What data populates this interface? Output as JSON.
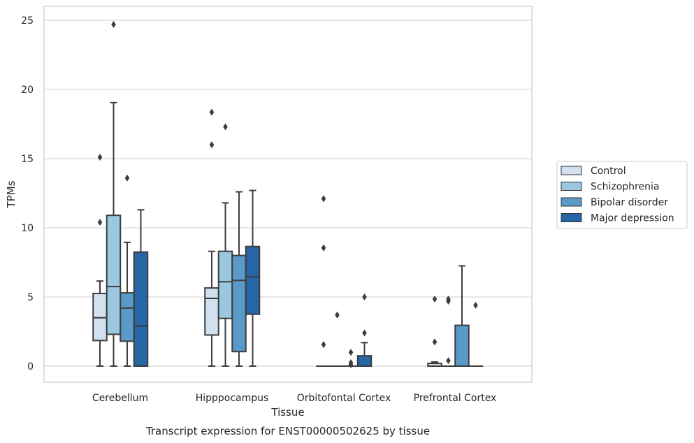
{
  "chart_data": {
    "type": "box",
    "caption": "Transcript expression for ENST00000502625 by tissue",
    "xlabel": "Tissue",
    "ylabel": "TPMs",
    "ylim": [
      -1.2,
      26
    ],
    "yticks": [
      0,
      5,
      10,
      15,
      20,
      25
    ],
    "grid": true,
    "legend_position": "right",
    "categories": [
      "Cerebellum",
      "Hipppocampus",
      "Orbitofontal Cortex",
      "Prefrontal Cortex"
    ],
    "series": [
      {
        "name": "Control",
        "color": "#d1e1f0",
        "boxes": [
          {
            "whislo": 0,
            "q1": 1.85,
            "med": 3.5,
            "q3": 5.25,
            "whishi": 6.15,
            "fliers": [
              10.4,
              15.1
            ]
          },
          {
            "whislo": 0,
            "q1": 2.25,
            "med": 4.9,
            "q3": 5.65,
            "whishi": 8.3,
            "fliers": [
              16.0,
              18.35
            ]
          },
          {
            "whislo": 0,
            "q1": 0,
            "med": 0,
            "q3": 0,
            "whishi": 0,
            "fliers": [
              1.55,
              8.55,
              12.1
            ]
          },
          {
            "whislo": 0,
            "q1": 0,
            "med": 0,
            "q3": 0.2,
            "whishi": 0.3,
            "fliers": [
              1.75,
              4.85
            ]
          }
        ]
      },
      {
        "name": "Schizophrenia",
        "color": "#9ac8e0",
        "boxes": [
          {
            "whislo": 0,
            "q1": 2.3,
            "med": 5.75,
            "q3": 10.9,
            "whishi": 19.05,
            "fliers": [
              24.7
            ]
          },
          {
            "whislo": 0,
            "q1": 3.45,
            "med": 6.1,
            "q3": 8.3,
            "whishi": 11.8,
            "fliers": [
              17.3
            ]
          },
          {
            "whislo": 0,
            "q1": 0,
            "med": 0,
            "q3": 0,
            "whishi": 0,
            "fliers": [
              3.7
            ]
          },
          {
            "whislo": 0,
            "q1": 0,
            "med": 0,
            "q3": 0,
            "whishi": 0,
            "fliers": [
              0.4,
              4.7,
              4.85
            ]
          }
        ]
      },
      {
        "name": "Bipolar disorder",
        "color": "#5a9ac8",
        "boxes": [
          {
            "whislo": 0,
            "q1": 1.8,
            "med": 4.2,
            "q3": 5.3,
            "whishi": 8.95,
            "fliers": [
              13.6
            ]
          },
          {
            "whislo": 0,
            "q1": 1.05,
            "med": 6.2,
            "q3": 8.0,
            "whishi": 12.6,
            "fliers": []
          },
          {
            "whislo": 0,
            "q1": 0,
            "med": 0,
            "q3": 0,
            "whishi": 0,
            "fliers": [
              0.1,
              0.25,
              1.0
            ]
          },
          {
            "whislo": 0,
            "q1": 0,
            "med": 0,
            "q3": 2.95,
            "whishi": 7.25,
            "fliers": []
          }
        ]
      },
      {
        "name": "Major depression",
        "color": "#2666a6",
        "boxes": [
          {
            "whislo": 0,
            "q1": 0,
            "med": 2.9,
            "q3": 8.25,
            "whishi": 11.3,
            "fliers": []
          },
          {
            "whislo": 0,
            "q1": 3.75,
            "med": 6.45,
            "q3": 8.65,
            "whishi": 12.7,
            "fliers": []
          },
          {
            "whislo": 0,
            "q1": 0,
            "med": 0,
            "q3": 0.75,
            "whishi": 1.7,
            "fliers": [
              2.4,
              5.0
            ]
          },
          {
            "whislo": 0,
            "q1": 0,
            "med": 0,
            "q3": 0,
            "whishi": 0,
            "fliers": [
              4.4
            ]
          }
        ]
      }
    ]
  }
}
